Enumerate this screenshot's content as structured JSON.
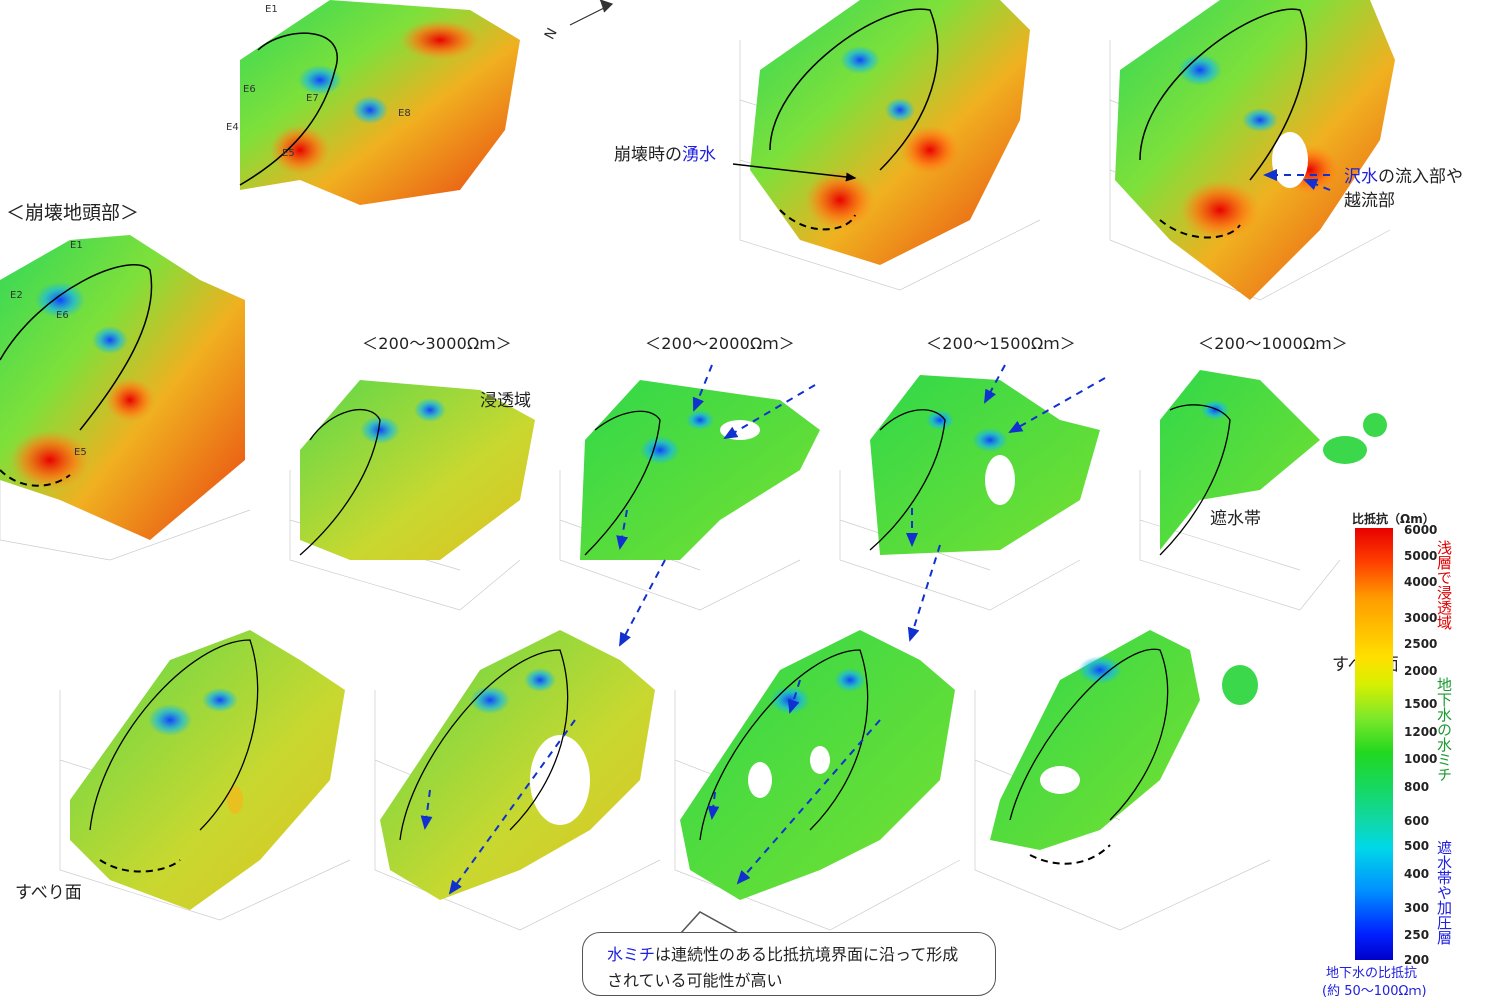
{
  "labels": {
    "head_label": "＜崩壊地頭部＞",
    "spring_label_a": "崩壊時の",
    "spring_label_b": "湧水",
    "inflow_line1_a": "沢水",
    "inflow_line1_b": "の流入部や",
    "inflow_line2": "越流部",
    "seepage_zone": "浸透域",
    "barrier_zone": "遮水帯",
    "slip_surface_left": "すべり面",
    "slip_surface_right": "すべり面",
    "north": "N"
  },
  "electrode_labels": [
    "E1",
    "E2",
    "E4",
    "E5",
    "E6",
    "E7",
    "E8"
  ],
  "range_headers": [
    "＜200～3000Ωｍ＞",
    "＜200～2000Ωｍ＞",
    "＜200～1500Ωｍ＞",
    "＜200～1000Ωｍ＞"
  ],
  "callout": {
    "line1_a": "水ミチ",
    "line1_b": "は連続性のある比抵抗境界面に沿って形成",
    "line2": "されている可能性が高い"
  },
  "legend": {
    "title": "比抵抗（Ωm）",
    "ticks": [
      "6000",
      "5000",
      "4000",
      "3000",
      "2500",
      "2000",
      "1500",
      "1200",
      "1000",
      "800",
      "600",
      "500",
      "400",
      "300",
      "250",
      "200"
    ],
    "shallow_label": "浅層で浸透域",
    "groundwater_label": "地下水の水ミチ",
    "barrier_label": "遮水帯や加圧層",
    "bottom_line1": "地下水の比抵抗",
    "bottom_line2": "(約 50～100Ωｍ)"
  },
  "colors": {
    "high": "#e80000",
    "mid": "#22d820",
    "low": "#0000c8",
    "red_text": "#e00000",
    "green_text": "#1a9a30",
    "blue_text": "#2020e0",
    "arrow_blue": "#1030d0"
  }
}
